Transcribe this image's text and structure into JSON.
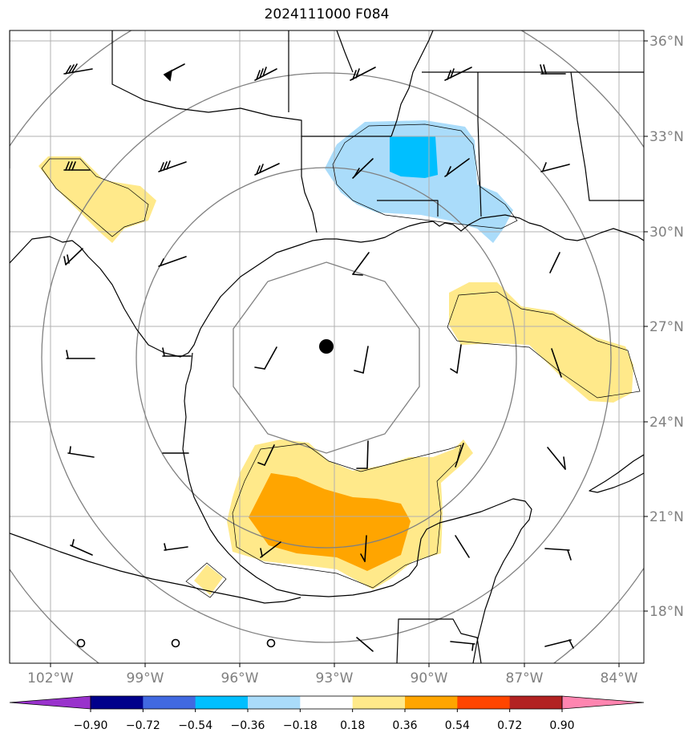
{
  "title": "2024111000 F084",
  "map": {
    "lat_ticks": [
      "36°N",
      "33°N",
      "30°N",
      "27°N",
      "24°N",
      "21°N",
      "18°N"
    ],
    "lon_ticks": [
      "102°W",
      "99°W",
      "96°W",
      "93°W",
      "90°W",
      "87°W",
      "84°W"
    ],
    "center_marker": {
      "lat": 26.4,
      "lon": -93.2
    },
    "range_rings": 4,
    "colors": {
      "light_yellow": "#ffe98a",
      "orange": "#ffa500",
      "light_blue": "#aadcfa",
      "blue": "#00bfff",
      "grid": "#b0b0b0",
      "ring": "#808080"
    }
  },
  "colorbar": {
    "colors": [
      "#9932cc",
      "#00008b",
      "#4169e1",
      "#00bfff",
      "#aadcfa",
      "#ffffff",
      "#ffe98a",
      "#ffa500",
      "#ff4500",
      "#b22222",
      "#ff85b0"
    ],
    "labels": [
      "−0.90",
      "−0.72",
      "−0.54",
      "−0.36",
      "−0.18",
      "0.18",
      "0.36",
      "0.54",
      "0.72",
      "0.90"
    ]
  }
}
